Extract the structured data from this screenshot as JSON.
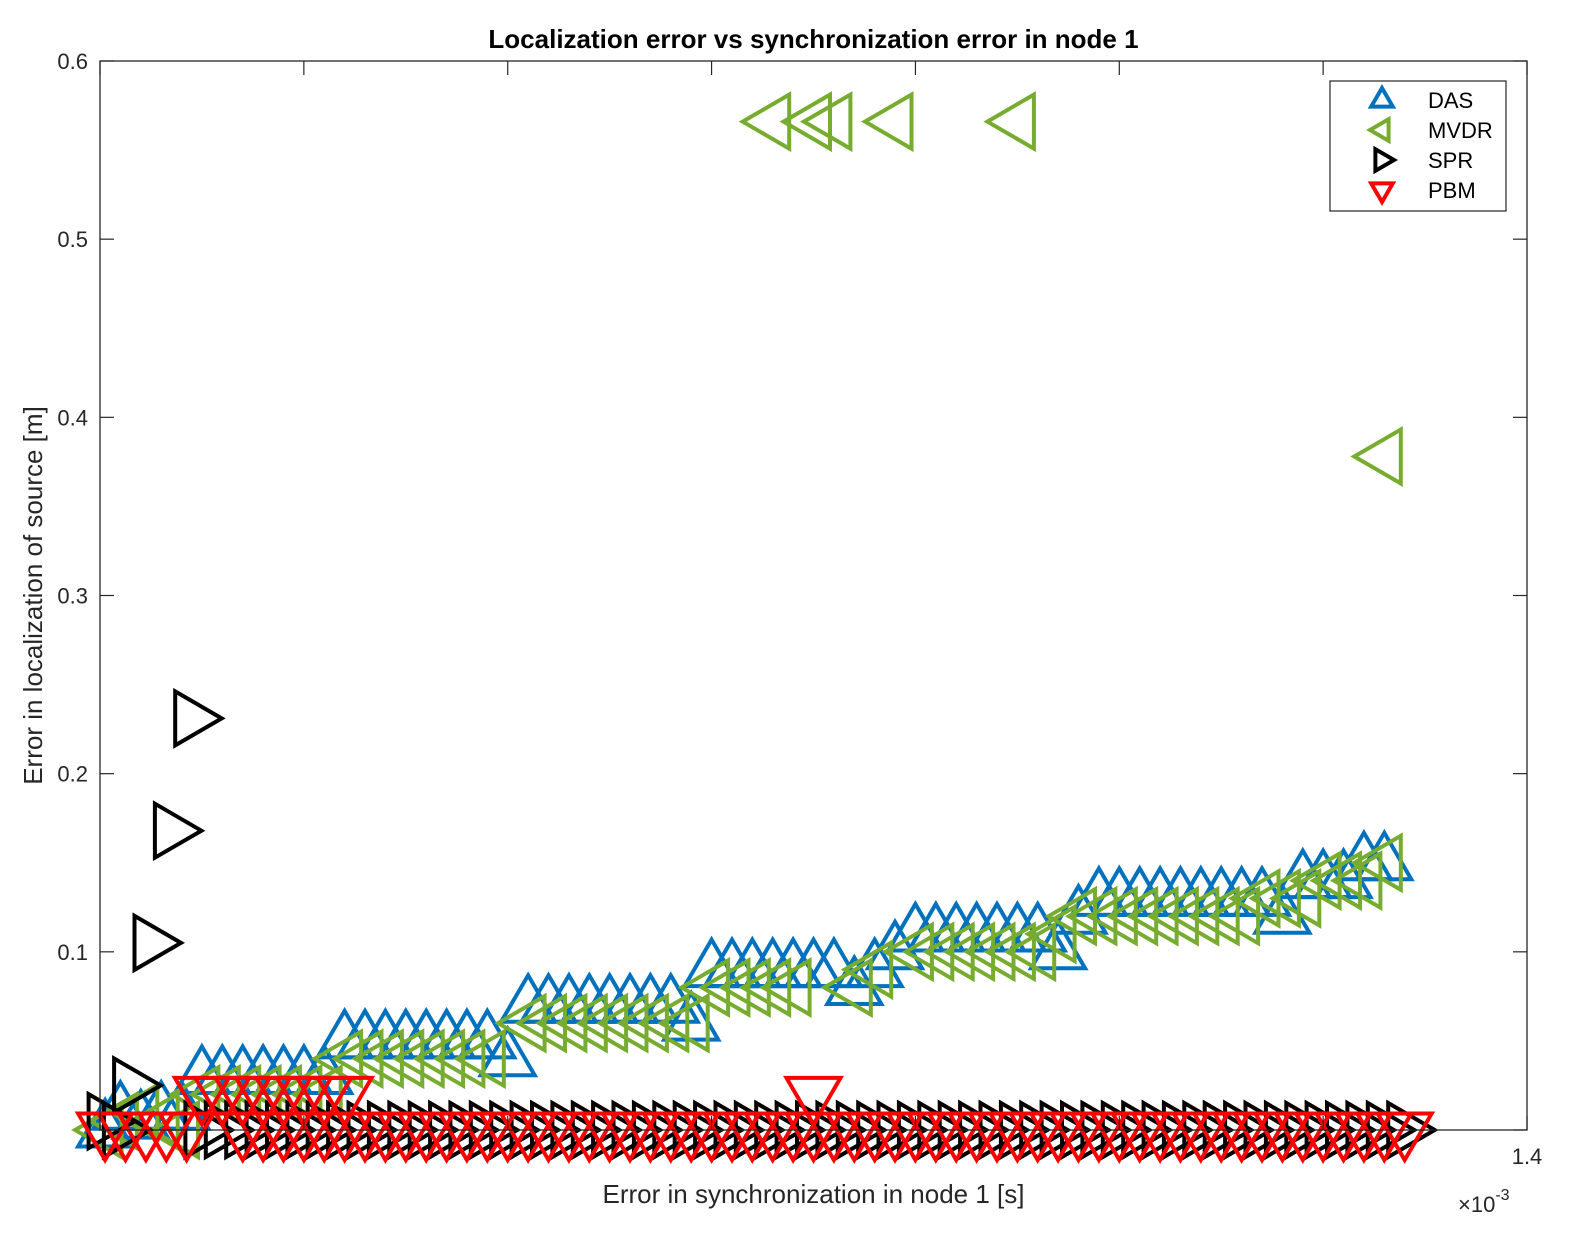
{
  "chart_data": {
    "type": "scatter",
    "title": "Localization error vs synchronization error in node 1",
    "xlabel": "Error in synchronization in node 1 [s]",
    "ylabel": "Error in localization of source [m]",
    "x_multiplier": {
      "base": "×10",
      "exponent": "-3"
    },
    "xlim": [
      0,
      1.4
    ],
    "ylim": [
      0,
      0.6
    ],
    "xticks": [
      0,
      0.2,
      0.4,
      0.6,
      0.8,
      1.0,
      1.2,
      1.4
    ],
    "yticks": [
      0,
      0.1,
      0.2,
      0.3,
      0.4,
      0.5,
      0.6
    ],
    "xtick_labels": [
      "",
      "",
      "",
      "",
      "",
      "",
      "",
      "1.4"
    ],
    "ytick_labels": [
      "",
      "0.1",
      "0.2",
      "0.3",
      "0.4",
      "0.5",
      "0.6"
    ],
    "grid": false,
    "legend_position": "top-right",
    "series": [
      {
        "name": "DAS",
        "marker": "triangle-up",
        "color": "#0072BD",
        "points": [
          [
            0.005,
            0.0
          ],
          [
            0.02,
            0.01
          ],
          [
            0.04,
            0.005
          ],
          [
            0.06,
            0.01
          ],
          [
            0.08,
            0.01
          ],
          [
            0.1,
            0.03
          ],
          [
            0.12,
            0.03
          ],
          [
            0.14,
            0.03
          ],
          [
            0.16,
            0.03
          ],
          [
            0.18,
            0.03
          ],
          [
            0.2,
            0.03
          ],
          [
            0.22,
            0.03
          ],
          [
            0.24,
            0.05
          ],
          [
            0.26,
            0.05
          ],
          [
            0.28,
            0.05
          ],
          [
            0.3,
            0.05
          ],
          [
            0.32,
            0.05
          ],
          [
            0.34,
            0.05
          ],
          [
            0.36,
            0.05
          ],
          [
            0.38,
            0.05
          ],
          [
            0.4,
            0.04
          ],
          [
            0.42,
            0.07
          ],
          [
            0.44,
            0.07
          ],
          [
            0.46,
            0.07
          ],
          [
            0.48,
            0.07
          ],
          [
            0.5,
            0.07
          ],
          [
            0.52,
            0.07
          ],
          [
            0.54,
            0.07
          ],
          [
            0.56,
            0.07
          ],
          [
            0.58,
            0.06
          ],
          [
            0.6,
            0.09
          ],
          [
            0.62,
            0.09
          ],
          [
            0.64,
            0.09
          ],
          [
            0.66,
            0.09
          ],
          [
            0.68,
            0.09
          ],
          [
            0.7,
            0.09
          ],
          [
            0.72,
            0.09
          ],
          [
            0.74,
            0.08
          ],
          [
            0.76,
            0.09
          ],
          [
            0.78,
            0.1
          ],
          [
            0.8,
            0.11
          ],
          [
            0.82,
            0.11
          ],
          [
            0.84,
            0.11
          ],
          [
            0.86,
            0.11
          ],
          [
            0.88,
            0.11
          ],
          [
            0.9,
            0.11
          ],
          [
            0.92,
            0.11
          ],
          [
            0.94,
            0.1
          ],
          [
            0.96,
            0.12
          ],
          [
            0.98,
            0.13
          ],
          [
            1.0,
            0.13
          ],
          [
            1.02,
            0.13
          ],
          [
            1.04,
            0.13
          ],
          [
            1.06,
            0.13
          ],
          [
            1.08,
            0.13
          ],
          [
            1.1,
            0.13
          ],
          [
            1.12,
            0.13
          ],
          [
            1.14,
            0.13
          ],
          [
            1.16,
            0.12
          ],
          [
            1.18,
            0.14
          ],
          [
            1.2,
            0.14
          ],
          [
            1.22,
            0.14
          ],
          [
            1.24,
            0.15
          ],
          [
            1.26,
            0.15
          ]
        ]
      },
      {
        "name": "MVDR",
        "marker": "triangle-left",
        "color": "#77AC30",
        "points": [
          [
            0.005,
            0.0
          ],
          [
            0.02,
            0.005
          ],
          [
            0.04,
            0.01
          ],
          [
            0.06,
            0.005
          ],
          [
            0.08,
            0.0
          ],
          [
            0.1,
            0.02
          ],
          [
            0.12,
            0.02
          ],
          [
            0.14,
            0.02
          ],
          [
            0.16,
            0.02
          ],
          [
            0.18,
            0.02
          ],
          [
            0.2,
            0.02
          ],
          [
            0.22,
            0.02
          ],
          [
            0.24,
            0.04
          ],
          [
            0.26,
            0.04
          ],
          [
            0.28,
            0.04
          ],
          [
            0.3,
            0.04
          ],
          [
            0.32,
            0.04
          ],
          [
            0.34,
            0.04
          ],
          [
            0.36,
            0.04
          ],
          [
            0.38,
            0.04
          ],
          [
            0.42,
            0.06
          ],
          [
            0.44,
            0.06
          ],
          [
            0.46,
            0.06
          ],
          [
            0.48,
            0.06
          ],
          [
            0.5,
            0.06
          ],
          [
            0.52,
            0.06
          ],
          [
            0.54,
            0.06
          ],
          [
            0.56,
            0.06
          ],
          [
            0.58,
            0.06
          ],
          [
            0.6,
            0.08
          ],
          [
            0.62,
            0.08
          ],
          [
            0.64,
            0.08
          ],
          [
            0.66,
            0.08
          ],
          [
            0.68,
            0.08
          ],
          [
            0.66,
            0.566
          ],
          [
            0.7,
            0.566
          ],
          [
            0.72,
            0.566
          ],
          [
            0.78,
            0.566
          ],
          [
            0.9,
            0.566
          ],
          [
            0.74,
            0.08
          ],
          [
            0.76,
            0.09
          ],
          [
            0.8,
            0.1
          ],
          [
            0.82,
            0.1
          ],
          [
            0.84,
            0.1
          ],
          [
            0.86,
            0.1
          ],
          [
            0.88,
            0.1
          ],
          [
            0.9,
            0.1
          ],
          [
            0.92,
            0.1
          ],
          [
            0.94,
            0.11
          ],
          [
            0.96,
            0.12
          ],
          [
            0.98,
            0.12
          ],
          [
            1.0,
            0.12
          ],
          [
            1.02,
            0.12
          ],
          [
            1.04,
            0.12
          ],
          [
            1.06,
            0.12
          ],
          [
            1.08,
            0.12
          ],
          [
            1.1,
            0.12
          ],
          [
            1.12,
            0.12
          ],
          [
            1.14,
            0.13
          ],
          [
            1.16,
            0.13
          ],
          [
            1.18,
            0.13
          ],
          [
            1.2,
            0.14
          ],
          [
            1.22,
            0.14
          ],
          [
            1.24,
            0.14
          ],
          [
            1.26,
            0.15
          ],
          [
            1.26,
            0.378
          ]
        ]
      },
      {
        "name": "SPR",
        "marker": "triangle-right",
        "color": "#000000",
        "points": [
          [
            0.005,
            0.005
          ],
          [
            0.02,
            0.0
          ],
          [
            0.03,
            0.025
          ],
          [
            0.05,
            0.105
          ],
          [
            0.07,
            0.168
          ],
          [
            0.09,
            0.231
          ],
          [
            0.1,
            0.0
          ],
          [
            0.12,
            0.0
          ],
          [
            0.14,
            0.0
          ],
          [
            0.16,
            0.0
          ],
          [
            0.18,
            0.0
          ],
          [
            0.2,
            0.0
          ],
          [
            0.22,
            0.0
          ],
          [
            0.24,
            0.0
          ],
          [
            0.26,
            0.0
          ],
          [
            0.28,
            0.0
          ],
          [
            0.3,
            0.0
          ],
          [
            0.32,
            0.0
          ],
          [
            0.34,
            0.0
          ],
          [
            0.36,
            0.0
          ],
          [
            0.38,
            0.0
          ],
          [
            0.4,
            0.0
          ],
          [
            0.42,
            0.0
          ],
          [
            0.44,
            0.0
          ],
          [
            0.46,
            0.0
          ],
          [
            0.48,
            0.0
          ],
          [
            0.5,
            0.0
          ],
          [
            0.52,
            0.0
          ],
          [
            0.54,
            0.0
          ],
          [
            0.56,
            0.0
          ],
          [
            0.58,
            0.0
          ],
          [
            0.6,
            0.0
          ],
          [
            0.62,
            0.0
          ],
          [
            0.64,
            0.0
          ],
          [
            0.66,
            0.0
          ],
          [
            0.68,
            0.0
          ],
          [
            0.7,
            0.0
          ],
          [
            0.72,
            0.0
          ],
          [
            0.74,
            0.0
          ],
          [
            0.76,
            0.0
          ],
          [
            0.78,
            0.0
          ],
          [
            0.8,
            0.0
          ],
          [
            0.82,
            0.0
          ],
          [
            0.84,
            0.0
          ],
          [
            0.86,
            0.0
          ],
          [
            0.88,
            0.0
          ],
          [
            0.9,
            0.0
          ],
          [
            0.92,
            0.0
          ],
          [
            0.94,
            0.0
          ],
          [
            0.96,
            0.0
          ],
          [
            0.98,
            0.0
          ],
          [
            1.0,
            0.0
          ],
          [
            1.02,
            0.0
          ],
          [
            1.04,
            0.0
          ],
          [
            1.06,
            0.0
          ],
          [
            1.08,
            0.0
          ],
          [
            1.1,
            0.0
          ],
          [
            1.12,
            0.0
          ],
          [
            1.14,
            0.0
          ],
          [
            1.16,
            0.0
          ],
          [
            1.18,
            0.0
          ],
          [
            1.2,
            0.0
          ],
          [
            1.22,
            0.0
          ],
          [
            1.24,
            0.0
          ],
          [
            1.26,
            0.0
          ],
          [
            1.28,
            0.0
          ]
        ]
      },
      {
        "name": "PBM",
        "marker": "triangle-down",
        "color": "#FF0000",
        "points": [
          [
            0.005,
            0.0
          ],
          [
            0.025,
            0.0
          ],
          [
            0.045,
            0.0
          ],
          [
            0.065,
            0.0
          ],
          [
            0.085,
            0.0
          ],
          [
            0.1,
            0.02
          ],
          [
            0.12,
            0.02
          ],
          [
            0.14,
            0.02
          ],
          [
            0.16,
            0.02
          ],
          [
            0.18,
            0.02
          ],
          [
            0.2,
            0.02
          ],
          [
            0.22,
            0.02
          ],
          [
            0.24,
            0.02
          ],
          [
            0.14,
            0.0
          ],
          [
            0.16,
            0.0
          ],
          [
            0.18,
            0.0
          ],
          [
            0.2,
            0.0
          ],
          [
            0.22,
            0.0
          ],
          [
            0.24,
            0.0
          ],
          [
            0.26,
            0.0
          ],
          [
            0.28,
            0.0
          ],
          [
            0.3,
            0.0
          ],
          [
            0.32,
            0.0
          ],
          [
            0.34,
            0.0
          ],
          [
            0.36,
            0.0
          ],
          [
            0.38,
            0.0
          ],
          [
            0.4,
            0.0
          ],
          [
            0.42,
            0.0
          ],
          [
            0.44,
            0.0
          ],
          [
            0.46,
            0.0
          ],
          [
            0.48,
            0.0
          ],
          [
            0.5,
            0.0
          ],
          [
            0.52,
            0.0
          ],
          [
            0.54,
            0.0
          ],
          [
            0.56,
            0.0
          ],
          [
            0.58,
            0.0
          ],
          [
            0.6,
            0.0
          ],
          [
            0.62,
            0.0
          ],
          [
            0.64,
            0.0
          ],
          [
            0.66,
            0.0
          ],
          [
            0.68,
            0.0
          ],
          [
            0.7,
            0.0
          ],
          [
            0.7,
            0.02
          ],
          [
            0.72,
            0.0
          ],
          [
            0.74,
            0.0
          ],
          [
            0.76,
            0.0
          ],
          [
            0.78,
            0.0
          ],
          [
            0.8,
            0.0
          ],
          [
            0.82,
            0.0
          ],
          [
            0.84,
            0.0
          ],
          [
            0.86,
            0.0
          ],
          [
            0.88,
            0.0
          ],
          [
            0.9,
            0.0
          ],
          [
            0.92,
            0.0
          ],
          [
            0.94,
            0.0
          ],
          [
            0.96,
            0.0
          ],
          [
            0.98,
            0.0
          ],
          [
            1.0,
            0.0
          ],
          [
            1.02,
            0.0
          ],
          [
            1.04,
            0.0
          ],
          [
            1.06,
            0.0
          ],
          [
            1.08,
            0.0
          ],
          [
            1.1,
            0.0
          ],
          [
            1.12,
            0.0
          ],
          [
            1.14,
            0.0
          ],
          [
            1.16,
            0.0
          ],
          [
            1.18,
            0.0
          ],
          [
            1.2,
            0.0
          ],
          [
            1.22,
            0.0
          ],
          [
            1.24,
            0.0
          ],
          [
            1.26,
            0.0
          ],
          [
            1.28,
            0.0
          ]
        ]
      }
    ]
  }
}
